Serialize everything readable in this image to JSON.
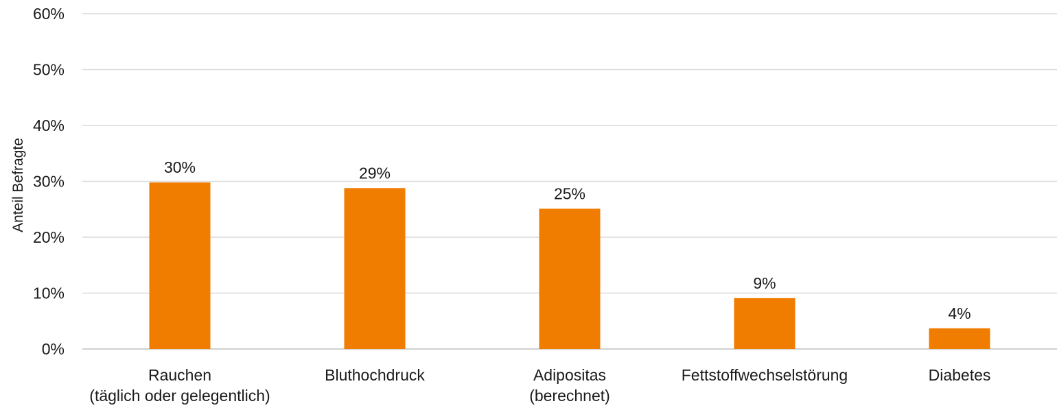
{
  "chart_data": {
    "type": "bar",
    "title": "",
    "xlabel": "",
    "ylabel": "Anteil Befragte",
    "ylim": [
      0,
      60
    ],
    "y_ticks": [
      0,
      10,
      20,
      30,
      40,
      50,
      60
    ],
    "y_tick_labels": [
      "0%",
      "10%",
      "20%",
      "30%",
      "40%",
      "50%",
      "60%"
    ],
    "categories": [
      [
        "Rauchen",
        "(täglich oder gelegentlich)"
      ],
      [
        "Bluthochdruck"
      ],
      [
        "Adipositas",
        "(berechnet)"
      ],
      [
        "Fettstoffwechselstörung"
      ],
      [
        "Diabetes"
      ]
    ],
    "values": [
      29.8,
      28.8,
      25.1,
      9.1,
      3.7
    ],
    "value_labels": [
      "30%",
      "29%",
      "25%",
      "9%",
      "4%"
    ],
    "bar_color": "#F07D00",
    "grid": true,
    "legend": "none"
  }
}
